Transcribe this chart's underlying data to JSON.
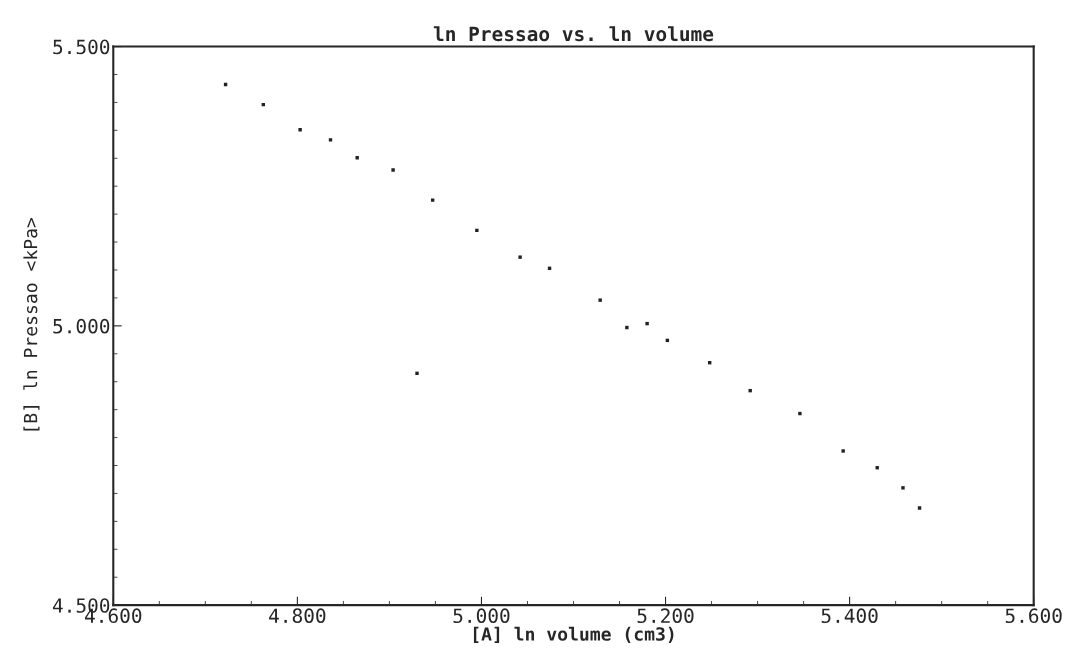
{
  "chart_data": {
    "type": "scatter",
    "title": "ln Pressao vs. ln volume",
    "xlabel": "[A] ln volume (cm3)",
    "ylabel": "[B] ln Pressao <kPa>",
    "x": [
      4.722,
      4.763,
      4.803,
      4.836,
      4.865,
      4.904,
      4.947,
      4.995,
      5.042,
      5.074,
      5.129,
      5.18,
      5.202,
      5.248,
      5.292,
      5.346,
      5.393,
      5.43,
      5.458,
      5.476,
      5.158,
      4.93
    ],
    "series": [
      {
        "color": "#222222",
        "values": [
          5.432,
          5.396,
          5.351,
          5.333,
          5.301,
          5.279,
          5.225,
          5.171,
          5.123,
          5.103,
          5.046,
          5.004,
          4.974,
          4.934,
          4.884,
          4.843,
          4.776,
          4.746,
          4.71,
          4.674,
          4.997,
          4.915
        ]
      }
    ],
    "xlim": [
      4.6,
      5.6
    ],
    "xticks": [
      {
        "value": 4.6,
        "label": "4.600"
      },
      {
        "value": 4.8,
        "label": "4.800"
      },
      {
        "value": 5.0,
        "label": "5.000"
      },
      {
        "value": 5.2,
        "label": "5.200"
      },
      {
        "value": 5.4,
        "label": "5.400"
      },
      {
        "value": 5.6,
        "label": "5.600"
      }
    ],
    "ylim": [
      4.5,
      5.5
    ],
    "yticks": [
      {
        "value": 4.5,
        "label": "4.500"
      },
      {
        "value": 5.0,
        "label": "5.000"
      },
      {
        "value": 5.5,
        "label": "5.500"
      }
    ],
    "marker": "square",
    "grid": false,
    "legend": false
  }
}
